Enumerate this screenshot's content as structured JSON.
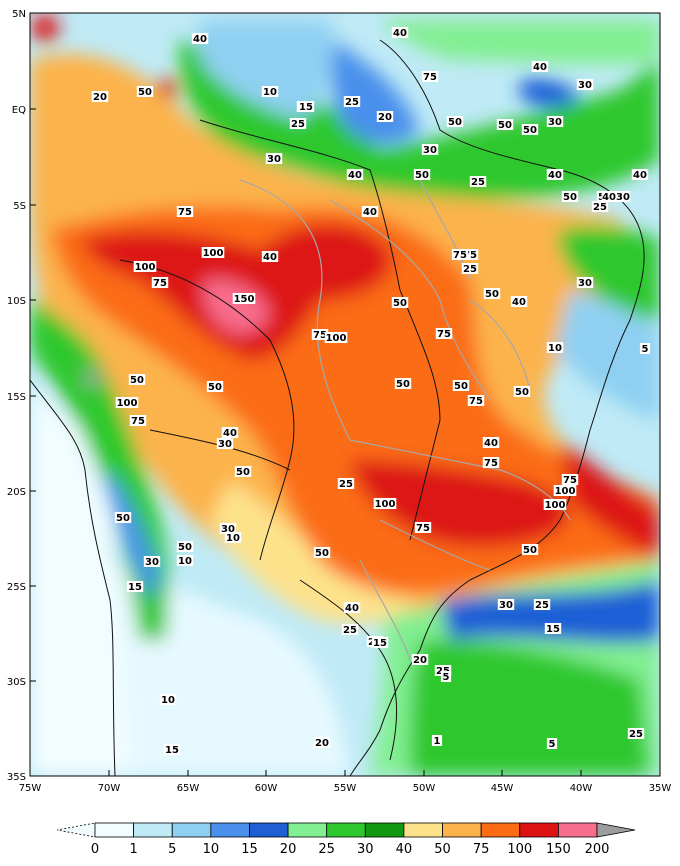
{
  "map": {
    "lat_labels": [
      "5N",
      "EQ",
      "5S",
      "10S",
      "15S",
      "20S",
      "25S",
      "30S",
      "35S"
    ],
    "lon_labels": [
      "75W",
      "70W",
      "65W",
      "60W",
      "55W",
      "50W",
      "45W",
      "40W",
      "35W"
    ],
    "contour_labels": [
      "40",
      "50",
      "30",
      "15",
      "40",
      "25",
      "40",
      "50",
      "40",
      "50",
      "75",
      "40",
      "50",
      "15",
      "25",
      "10",
      "20",
      "50",
      "30",
      "50",
      "30",
      "30",
      "40",
      "50",
      "75",
      "25",
      "40",
      "50",
      "4030",
      "40",
      "75",
      "75",
      "25",
      "100",
      "100",
      "75",
      "150",
      "50",
      "30",
      "25",
      "40",
      "75",
      "75",
      "100",
      "50",
      "10",
      "5",
      "50",
      "100",
      "75",
      "50",
      "50",
      "75",
      "50",
      "40",
      "30",
      "50",
      "25",
      "40",
      "75",
      "75",
      "100",
      "100",
      "100",
      "75",
      "50",
      "50",
      "50",
      "30",
      "15",
      "10",
      "50",
      "10",
      "30",
      "40",
      "25",
      "25",
      "20",
      "15",
      "30",
      "25",
      "15",
      "10",
      "20",
      "5",
      "15",
      "20",
      "1",
      "5",
      "25",
      "25",
      "20"
    ]
  },
  "legend": {
    "levels": [
      "0",
      "1",
      "5",
      "10",
      "15",
      "20",
      "25",
      "30",
      "40",
      "50",
      "75",
      "100",
      "150",
      "200"
    ],
    "colors": [
      "#f2fdff",
      "#bfeaf6",
      "#8fd0f2",
      "#4a90ec",
      "#1f5fd6",
      "#82ef92",
      "#2ec82e",
      "#119a11",
      "#fde28c",
      "#fcb34c",
      "#fb6c14",
      "#dd1212",
      "#f76d8c",
      "#9d9d9d"
    ]
  }
}
